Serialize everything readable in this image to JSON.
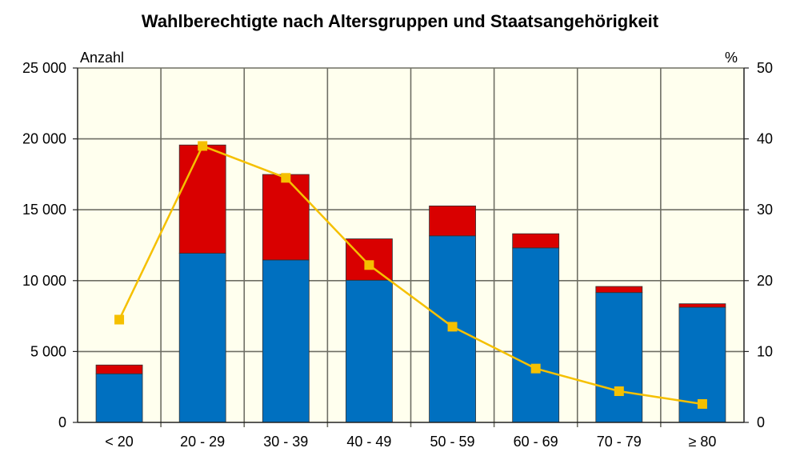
{
  "chart_data": {
    "type": "bar",
    "stacked": true,
    "title": "Wahlberechtigte nach Altersgruppen und Staatsangehörigkeit",
    "ylabel_left": "Anzahl",
    "ylabel_right": "%",
    "categories": [
      "< 20",
      "20 - 29",
      "30 - 39",
      "40 - 49",
      "50 - 59",
      "60 - 69",
      "70 - 79",
      "≥ 80"
    ],
    "series": [
      {
        "type": "bar",
        "axis": "left",
        "color": "#0070C0",
        "values": [
          3430,
          11930,
          11460,
          10030,
          13160,
          12310,
          9160,
          8120
        ]
      },
      {
        "type": "bar",
        "axis": "left",
        "color": "#D90000",
        "values": [
          620,
          7640,
          6030,
          2920,
          2110,
          1000,
          430,
          250
        ]
      },
      {
        "type": "line",
        "axis": "right",
        "color": "#F5C000",
        "marker": "square",
        "values": [
          14.5,
          39.0,
          34.5,
          22.2,
          13.5,
          7.6,
          4.4,
          2.6
        ]
      }
    ],
    "ylim_left": [
      0,
      25000
    ],
    "ylim_right": [
      0,
      50
    ],
    "yticks_left": [
      "0",
      "5 000",
      "10 000",
      "15 000",
      "20 000",
      "25 000"
    ],
    "yticks_right": [
      "0",
      "10",
      "20",
      "30",
      "40",
      "50"
    ],
    "grid": true,
    "plot_background": "#FFFFEE"
  }
}
